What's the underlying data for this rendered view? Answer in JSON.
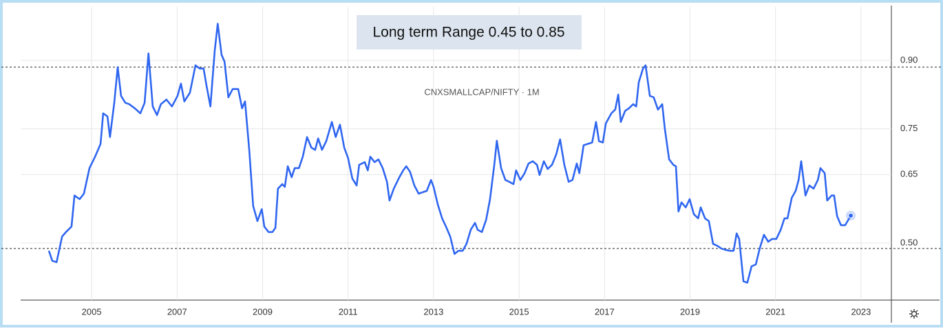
{
  "chart_data": {
    "type": "line",
    "annotation": "Long term Range  0.45 to 0.85",
    "subtitle": "CNXSMALLCAP/NIFTY · 1M",
    "xlim": [
      2003.34,
      2023.71
    ],
    "xticks": [
      2005,
      2007,
      2009,
      2011,
      2013,
      2015,
      2017,
      2019,
      2021,
      2023
    ],
    "ylim": [
      0.375,
      1.017
    ],
    "yticks": [
      {
        "value": 0.9,
        "label": "0.90"
      },
      {
        "value": 0.75,
        "label": "0.75"
      },
      {
        "value": 0.65,
        "label": "0.65"
      },
      {
        "value": 0.5,
        "label": "0.50"
      }
    ],
    "reference_lines": [
      0.885,
      0.488
    ],
    "grid": true,
    "series": [
      {
        "name": "CNXSMALLCAP/NIFTY",
        "color": "#2f66f0",
        "x": [
          2004.0,
          2004.08,
          2004.18,
          2004.31,
          2004.4,
          2004.53,
          2004.6,
          2004.72,
          2004.82,
          2004.95,
          2005.08,
          2005.21,
          2005.27,
          2005.37,
          2005.43,
          2005.53,
          2005.61,
          2005.69,
          2005.79,
          2005.88,
          2006.01,
          2006.14,
          2006.24,
          2006.33,
          2006.43,
          2006.53,
          2006.62,
          2006.75,
          2006.88,
          2007.01,
          2007.09,
          2007.17,
          2007.3,
          2007.43,
          2007.53,
          2007.62,
          2007.69,
          2007.78,
          2007.88,
          2007.95,
          2008.04,
          2008.11,
          2008.2,
          2008.3,
          2008.43,
          2008.52,
          2008.59,
          2008.69,
          2008.78,
          2008.88,
          2008.98,
          2009.04,
          2009.14,
          2009.23,
          2009.3,
          2009.36,
          2009.46,
          2009.52,
          2009.59,
          2009.68,
          2009.75,
          2009.85,
          2009.94,
          2010.04,
          2010.14,
          2010.23,
          2010.3,
          2010.39,
          2010.49,
          2010.62,
          2010.71,
          2010.81,
          2010.91,
          2011.0,
          2011.1,
          2011.2,
          2011.26,
          2011.39,
          2011.46,
          2011.52,
          2011.62,
          2011.71,
          2011.81,
          2011.91,
          2011.97,
          2012.07,
          2012.2,
          2012.29,
          2012.36,
          2012.45,
          2012.55,
          2012.65,
          2012.74,
          2012.84,
          2012.94,
          2013.0,
          2013.1,
          2013.2,
          2013.29,
          2013.39,
          2013.49,
          2013.58,
          2013.68,
          2013.77,
          2013.87,
          2013.97,
          2014.03,
          2014.13,
          2014.23,
          2014.32,
          2014.42,
          2014.48,
          2014.58,
          2014.68,
          2014.77,
          2014.87,
          2014.93,
          2015.03,
          2015.13,
          2015.22,
          2015.32,
          2015.42,
          2015.48,
          2015.58,
          2015.67,
          2015.77,
          2015.87,
          2015.96,
          2016.06,
          2016.16,
          2016.25,
          2016.35,
          2016.41,
          2016.51,
          2016.61,
          2016.71,
          2016.8,
          2016.87,
          2016.96,
          2017.03,
          2017.16,
          2017.25,
          2017.32,
          2017.38,
          2017.48,
          2017.57,
          2017.67,
          2017.74,
          2017.8,
          2017.9,
          2017.96,
          2018.06,
          2018.15,
          2018.25,
          2018.35,
          2018.41,
          2018.51,
          2018.61,
          2018.67,
          2018.73,
          2018.8,
          2018.9,
          2018.99,
          2019.09,
          2019.19,
          2019.25,
          2019.35,
          2019.44,
          2019.54,
          2019.64,
          2019.73,
          2019.83,
          2019.93,
          2020.02,
          2020.09,
          2020.15,
          2020.25,
          2020.34,
          2020.44,
          2020.54,
          2020.63,
          2020.73,
          2020.83,
          2020.92,
          2021.02,
          2021.12,
          2021.21,
          2021.28,
          2021.38,
          2021.47,
          2021.54,
          2021.6,
          2021.7,
          2021.79,
          2021.89,
          2021.99,
          2022.05,
          2022.15,
          2022.21,
          2022.31,
          2022.37,
          2022.44,
          2022.53,
          2022.63,
          2022.76
        ],
        "values": [
          0.483,
          0.461,
          0.458,
          0.514,
          0.524,
          0.536,
          0.604,
          0.596,
          0.608,
          0.664,
          0.689,
          0.717,
          0.784,
          0.777,
          0.732,
          0.807,
          0.885,
          0.822,
          0.807,
          0.804,
          0.795,
          0.784,
          0.807,
          0.915,
          0.799,
          0.78,
          0.804,
          0.814,
          0.799,
          0.822,
          0.849,
          0.81,
          0.829,
          0.889,
          0.882,
          0.882,
          0.844,
          0.799,
          0.92,
          0.98,
          0.912,
          0.897,
          0.819,
          0.837,
          0.837,
          0.795,
          0.81,
          0.702,
          0.581,
          0.548,
          0.574,
          0.536,
          0.524,
          0.524,
          0.533,
          0.619,
          0.629,
          0.623,
          0.668,
          0.644,
          0.664,
          0.664,
          0.689,
          0.732,
          0.709,
          0.704,
          0.729,
          0.704,
          0.723,
          0.765,
          0.732,
          0.759,
          0.709,
          0.686,
          0.641,
          0.626,
          0.671,
          0.677,
          0.659,
          0.689,
          0.677,
          0.683,
          0.664,
          0.634,
          0.593,
          0.619,
          0.644,
          0.659,
          0.668,
          0.656,
          0.626,
          0.608,
          0.611,
          0.614,
          0.638,
          0.623,
          0.584,
          0.554,
          0.536,
          0.514,
          0.476,
          0.483,
          0.483,
          0.498,
          0.529,
          0.544,
          0.529,
          0.524,
          0.551,
          0.596,
          0.671,
          0.724,
          0.664,
          0.638,
          0.634,
          0.629,
          0.659,
          0.638,
          0.653,
          0.674,
          0.679,
          0.671,
          0.649,
          0.679,
          0.662,
          0.671,
          0.694,
          0.727,
          0.671,
          0.634,
          0.638,
          0.674,
          0.653,
          0.714,
          0.717,
          0.72,
          0.765,
          0.723,
          0.72,
          0.762,
          0.784,
          0.792,
          0.825,
          0.765,
          0.789,
          0.795,
          0.804,
          0.799,
          0.852,
          0.882,
          0.889,
          0.822,
          0.819,
          0.792,
          0.804,
          0.75,
          0.683,
          0.671,
          0.668,
          0.569,
          0.589,
          0.578,
          0.596,
          0.563,
          0.554,
          0.578,
          0.554,
          0.548,
          0.498,
          0.494,
          0.488,
          0.485,
          0.483,
          0.483,
          0.521,
          0.509,
          0.416,
          0.413,
          0.449,
          0.453,
          0.488,
          0.518,
          0.503,
          0.509,
          0.509,
          0.529,
          0.554,
          0.554,
          0.599,
          0.614,
          0.638,
          0.679,
          0.604,
          0.626,
          0.619,
          0.638,
          0.664,
          0.653,
          0.593,
          0.604,
          0.604,
          0.559,
          0.539,
          0.539,
          0.56
        ]
      }
    ]
  }
}
